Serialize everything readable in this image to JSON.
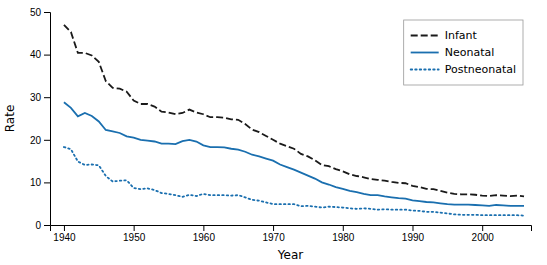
{
  "chart_data": {
    "type": "line",
    "xlabel": "Year",
    "ylabel": "Rate",
    "x": [
      1940,
      1941,
      1942,
      1943,
      1944,
      1945,
      1946,
      1947,
      1948,
      1949,
      1950,
      1951,
      1952,
      1953,
      1954,
      1955,
      1956,
      1957,
      1958,
      1959,
      1960,
      1961,
      1962,
      1963,
      1964,
      1965,
      1966,
      1967,
      1968,
      1969,
      1970,
      1971,
      1972,
      1973,
      1974,
      1975,
      1976,
      1977,
      1978,
      1979,
      1980,
      1981,
      1982,
      1983,
      1984,
      1985,
      1986,
      1987,
      1988,
      1989,
      1990,
      1991,
      1992,
      1993,
      1994,
      1995,
      1996,
      1997,
      1998,
      1999,
      2000,
      2001,
      2002,
      2003,
      2004,
      2005,
      2006
    ],
    "series": [
      {
        "name": "Infant",
        "color": "#1a1a1a",
        "line_style": "dashed",
        "values": [
          47.0,
          45.3,
          40.4,
          40.4,
          39.8,
          38.3,
          33.8,
          32.2,
          32.0,
          31.3,
          29.2,
          28.4,
          28.4,
          27.8,
          26.6,
          26.4,
          26.0,
          26.3,
          27.1,
          26.4,
          26.0,
          25.3,
          25.3,
          25.2,
          24.8,
          24.7,
          23.7,
          22.4,
          21.8,
          20.9,
          20.0,
          19.1,
          18.5,
          17.9,
          16.7,
          16.1,
          15.2,
          14.1,
          13.8,
          13.1,
          12.6,
          11.9,
          11.5,
          11.2,
          10.8,
          10.6,
          10.4,
          10.1,
          9.9,
          9.8,
          9.2,
          8.9,
          8.5,
          8.4,
          8.0,
          7.6,
          7.3,
          7.2,
          7.2,
          7.1,
          6.9,
          6.8,
          7.0,
          6.9,
          6.8,
          6.9,
          6.7
        ]
      },
      {
        "name": "Neonatal",
        "color": "#1a6faf",
        "line_style": "solid",
        "values": [
          28.8,
          27.5,
          25.5,
          26.3,
          25.6,
          24.3,
          22.3,
          22.0,
          21.6,
          20.8,
          20.5,
          20.0,
          19.8,
          19.6,
          19.1,
          19.1,
          19.0,
          19.7,
          20.0,
          19.6,
          18.7,
          18.3,
          18.3,
          18.2,
          17.9,
          17.7,
          17.2,
          16.5,
          16.1,
          15.6,
          15.1,
          14.2,
          13.6,
          13.0,
          12.3,
          11.6,
          10.9,
          10.0,
          9.5,
          8.9,
          8.5,
          8.0,
          7.7,
          7.3,
          7.0,
          7.0,
          6.7,
          6.5,
          6.3,
          6.2,
          5.8,
          5.6,
          5.4,
          5.3,
          5.1,
          4.9,
          4.8,
          4.8,
          4.8,
          4.7,
          4.6,
          4.5,
          4.7,
          4.6,
          4.5,
          4.5,
          4.5
        ]
      },
      {
        "name": "Postneonatal",
        "color": "#1a6faf",
        "line_style": "dotted",
        "values": [
          18.3,
          17.8,
          14.9,
          14.1,
          14.2,
          14.0,
          11.5,
          10.2,
          10.4,
          10.5,
          8.7,
          8.4,
          8.6,
          8.2,
          7.5,
          7.3,
          7.0,
          6.6,
          7.1,
          6.8,
          7.3,
          7.0,
          7.0,
          7.0,
          6.9,
          7.0,
          6.5,
          5.9,
          5.7,
          5.3,
          4.9,
          4.9,
          4.9,
          4.9,
          4.4,
          4.5,
          4.3,
          4.1,
          4.3,
          4.2,
          4.1,
          3.9,
          3.8,
          3.9,
          3.8,
          3.6,
          3.7,
          3.6,
          3.6,
          3.6,
          3.4,
          3.3,
          3.1,
          3.1,
          2.9,
          2.7,
          2.5,
          2.4,
          2.4,
          2.4,
          2.3,
          2.3,
          2.3,
          2.3,
          2.3,
          2.3,
          2.2
        ]
      }
    ],
    "xlim": [
      1938,
      2007
    ],
    "ylim": [
      0,
      50
    ],
    "xticks": [
      1940,
      1950,
      1960,
      1970,
      1980,
      1990,
      2000
    ],
    "yticks": [
      0,
      10,
      20,
      30,
      40,
      50
    ],
    "legend": "upper right"
  }
}
